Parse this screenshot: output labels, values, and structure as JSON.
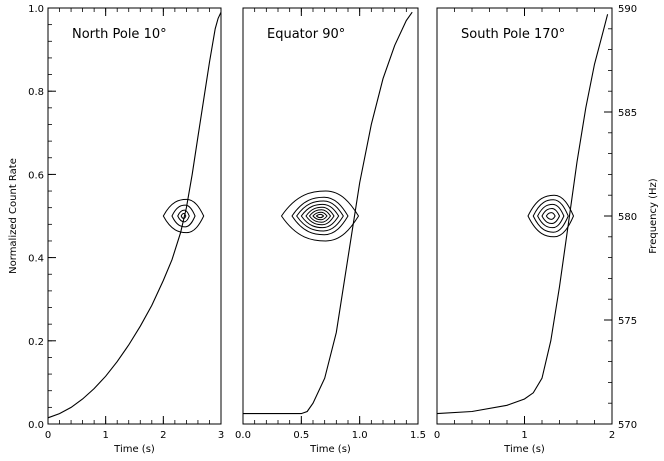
{
  "chart_data": [
    {
      "type": "line",
      "title": "North Pole 10°",
      "xlabel": "Time (s)",
      "ylabel": "Normalized Count Rate",
      "xlim": [
        0,
        3
      ],
      "ylim": [
        0,
        1
      ],
      "xticks": [
        {
          "v": 0,
          "label": "0"
        },
        {
          "v": 1,
          "label": "1"
        },
        {
          "v": 2,
          "label": "2"
        },
        {
          "v": 3,
          "label": "3"
        }
      ],
      "yticks": [
        {
          "v": 0,
          "label": "0.0"
        },
        {
          "v": 0.2,
          "label": "0.2"
        },
        {
          "v": 0.4,
          "label": "0.4"
        },
        {
          "v": 0.6,
          "label": "0.6"
        },
        {
          "v": 0.8,
          "label": "0.8"
        },
        {
          "v": 1.0,
          "label": "1.0"
        }
      ],
      "series": [
        {
          "kind": "curve",
          "x": [
            0.0,
            0.2,
            0.4,
            0.6,
            0.8,
            1.0,
            1.2,
            1.4,
            1.6,
            1.8,
            2.0,
            2.15,
            2.3,
            2.4,
            2.5,
            2.6,
            2.7,
            2.8,
            2.9,
            2.95,
            3.0
          ],
          "y": [
            0.015,
            0.025,
            0.04,
            0.06,
            0.085,
            0.115,
            0.15,
            0.19,
            0.235,
            0.285,
            0.345,
            0.395,
            0.46,
            0.52,
            0.6,
            0.69,
            0.78,
            0.87,
            0.95,
            0.975,
            0.99
          ]
        }
      ],
      "contours": {
        "center": [
          2.35,
          0.5
        ],
        "half_widths": [
          [
            0.35,
            0.04
          ],
          [
            0.2,
            0.026
          ],
          [
            0.1,
            0.014
          ],
          [
            0.04,
            0.006
          ]
        ]
      }
    },
    {
      "type": "line",
      "title": "Equator 90°",
      "xlabel": "Time (s)",
      "ylabel": "",
      "xlim": [
        0,
        1.5
      ],
      "ylim": [
        0,
        1
      ],
      "xticks": [
        {
          "v": 0,
          "label": "0.0"
        },
        {
          "v": 0.5,
          "label": "0.5"
        },
        {
          "v": 1.0,
          "label": "1.0"
        },
        {
          "v": 1.5,
          "label": "1.5"
        }
      ],
      "yticks": [],
      "series": [
        {
          "kind": "curve",
          "x": [
            0.0,
            0.2,
            0.4,
            0.5,
            0.55,
            0.6,
            0.7,
            0.8,
            0.9,
            1.0,
            1.1,
            1.2,
            1.3,
            1.4,
            1.45
          ],
          "y": [
            0.025,
            0.025,
            0.025,
            0.025,
            0.03,
            0.05,
            0.11,
            0.22,
            0.4,
            0.58,
            0.72,
            0.83,
            0.91,
            0.97,
            0.99
          ]
        }
      ],
      "contours": {
        "center": [
          0.66,
          0.5
        ],
        "half_widths": [
          [
            0.33,
            0.06
          ],
          [
            0.24,
            0.045
          ],
          [
            0.2,
            0.036
          ],
          [
            0.16,
            0.028
          ],
          [
            0.12,
            0.021
          ],
          [
            0.09,
            0.015
          ],
          [
            0.06,
            0.009
          ],
          [
            0.03,
            0.004
          ]
        ]
      }
    },
    {
      "type": "line",
      "title": "South Pole 170°",
      "xlabel": "Time (s)",
      "ylabel": "Frequency (Hz)",
      "xlim": [
        0,
        2
      ],
      "ylim": [
        570,
        590
      ],
      "y_axis_side": "right",
      "xticks": [
        {
          "v": 0,
          "label": "0"
        },
        {
          "v": 1,
          "label": "1"
        },
        {
          "v": 2,
          "label": "2"
        }
      ],
      "yticks": [
        {
          "v": 570,
          "label": "570"
        },
        {
          "v": 575,
          "label": "575"
        },
        {
          "v": 580,
          "label": "580"
        },
        {
          "v": 585,
          "label": "585"
        },
        {
          "v": 590,
          "label": "590"
        }
      ],
      "series": [
        {
          "kind": "curve",
          "x": [
            0.0,
            0.4,
            0.8,
            1.0,
            1.1,
            1.2,
            1.3,
            1.4,
            1.5,
            1.6,
            1.7,
            1.8,
            1.9,
            1.95
          ],
          "y": [
            570.5,
            570.6,
            570.9,
            571.2,
            571.5,
            572.2,
            574.0,
            576.6,
            579.6,
            582.6,
            585.2,
            587.3,
            588.9,
            589.7
          ]
        }
      ],
      "contours": {
        "center": [
          1.3,
          580
        ],
        "half_widths": [
          [
            0.26,
            1.0
          ],
          [
            0.2,
            0.78
          ],
          [
            0.15,
            0.56
          ],
          [
            0.1,
            0.36
          ],
          [
            0.05,
            0.16
          ]
        ]
      }
    }
  ]
}
